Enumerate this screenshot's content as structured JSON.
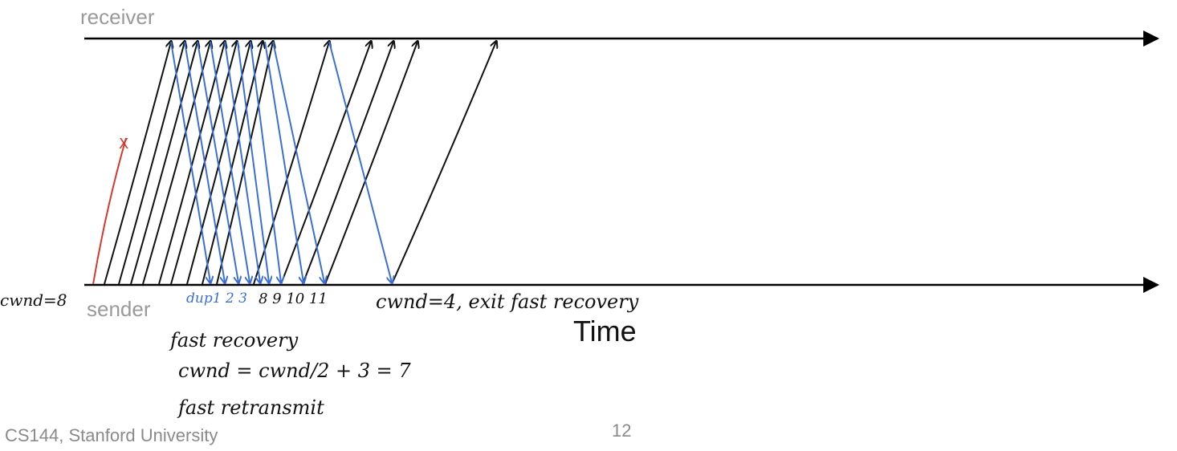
{
  "diagram": {
    "receiver_label": "receiver",
    "sender_label": "sender",
    "axis_label": "Time",
    "footer": "CS144, Stanford University",
    "page_number": "12",
    "colors": {
      "data_segment": "#111111",
      "ack": "#3b6fd8",
      "lost_segment": "#d8372b",
      "timeline": "#000000",
      "typed_label": "#9a9a9a"
    },
    "annotations": {
      "cwnd_start": "cwnd=8",
      "dupacks": "dup1 2 3",
      "sent_numbers": "8 9 10 11",
      "cwnd_exit": "cwnd=4, exit fast recovery",
      "fast_recovery": "fast recovery",
      "cwnd_formula": "cwnd = cwnd/2 + 3 = 7",
      "fast_retransmit": "fast retransmit"
    },
    "lost_segment_mark": "X"
  }
}
